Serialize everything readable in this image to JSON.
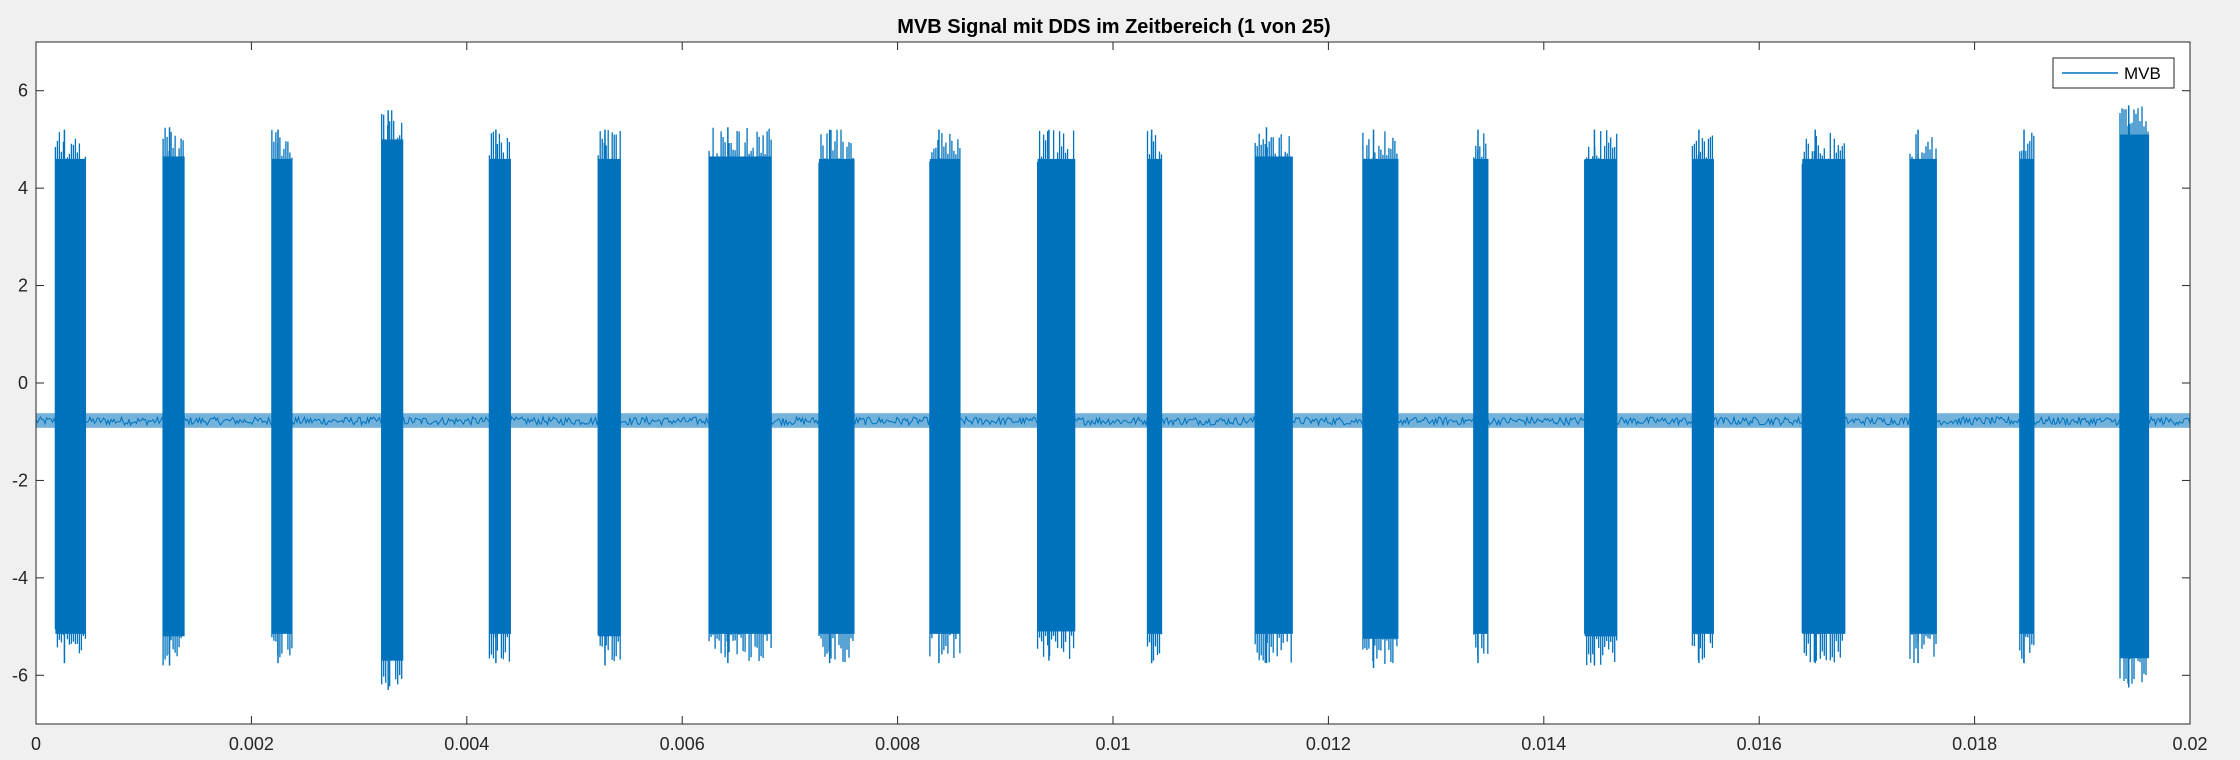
{
  "window": {
    "background": "#f0f0f0"
  },
  "chart_data": {
    "type": "line",
    "title": "MVB Signal mit DDS im Zeitbereich (1 von 25)",
    "xlabel": "",
    "ylabel": "",
    "xlim": [
      0,
      0.02
    ],
    "ylim": [
      -7,
      7
    ],
    "xticks": [
      0,
      0.002,
      0.004,
      0.006,
      0.008,
      0.01,
      0.012,
      0.014,
      0.016,
      0.018,
      0.02
    ],
    "xtick_labels": [
      "0",
      "0.002",
      "0.004",
      "0.006",
      "0.008",
      "0.01",
      "0.012",
      "0.014",
      "0.016",
      "0.018",
      "0.02"
    ],
    "yticks": [
      -6,
      -4,
      -2,
      0,
      2,
      4,
      6
    ],
    "ytick_labels": [
      "-6",
      "-4",
      "-2",
      "0",
      "2",
      "4",
      "6"
    ],
    "grid": false,
    "legend": {
      "entries": [
        "MVB"
      ],
      "location": "top-right"
    },
    "series": [
      {
        "name": "MVB",
        "color": "#0072bd",
        "baseline": {
          "center": -0.78,
          "ripple_min": -0.92,
          "ripple_max": -0.62
        },
        "bursts": [
          {
            "t_start": 0.00018,
            "t_end": 0.00046,
            "max": 5.2,
            "min": -5.75
          },
          {
            "t_start": 0.00118,
            "t_end": 0.00138,
            "max": 5.25,
            "min": -5.8
          },
          {
            "t_start": 0.00219,
            "t_end": 0.00238,
            "max": 5.2,
            "min": -5.75
          },
          {
            "t_start": 0.00321,
            "t_end": 0.00341,
            "max": 5.6,
            "min": -6.3
          },
          {
            "t_start": 0.00421,
            "t_end": 0.00441,
            "max": 5.2,
            "min": -5.75
          },
          {
            "t_start": 0.00522,
            "t_end": 0.00543,
            "max": 5.2,
            "min": -5.8
          },
          {
            "t_start": 0.00625,
            "t_end": 0.00683,
            "max": 5.25,
            "min": -5.75
          },
          {
            "t_start": 0.00727,
            "t_end": 0.0076,
            "max": 5.2,
            "min": -5.75
          },
          {
            "t_start": 0.0083,
            "t_end": 0.00858,
            "max": 5.2,
            "min": -5.75
          },
          {
            "t_start": 0.0093,
            "t_end": 0.00965,
            "max": 5.2,
            "min": -5.7
          },
          {
            "t_start": 0.01032,
            "t_end": 0.01045,
            "max": 5.2,
            "min": -5.75
          },
          {
            "t_start": 0.01132,
            "t_end": 0.01167,
            "max": 5.25,
            "min": -5.75
          },
          {
            "t_start": 0.01232,
            "t_end": 0.01265,
            "max": 5.2,
            "min": -5.85
          },
          {
            "t_start": 0.01335,
            "t_end": 0.01348,
            "max": 5.2,
            "min": -5.75
          },
          {
            "t_start": 0.01438,
            "t_end": 0.01468,
            "max": 5.2,
            "min": -5.8
          },
          {
            "t_start": 0.01538,
            "t_end": 0.01558,
            "max": 5.2,
            "min": -5.75
          },
          {
            "t_start": 0.0164,
            "t_end": 0.0168,
            "max": 5.2,
            "min": -5.75
          },
          {
            "t_start": 0.0174,
            "t_end": 0.01765,
            "max": 5.2,
            "min": -5.75
          },
          {
            "t_start": 0.01842,
            "t_end": 0.01855,
            "max": 5.2,
            "min": -5.75
          },
          {
            "t_start": 0.01935,
            "t_end": 0.01962,
            "max": 5.7,
            "min": -6.25
          }
        ]
      }
    ]
  }
}
